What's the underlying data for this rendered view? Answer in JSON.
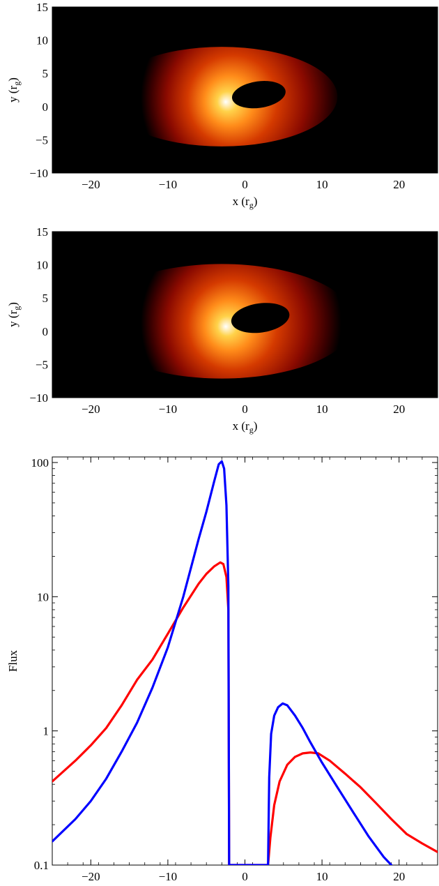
{
  "chart_data": [
    {
      "type": "heatmap",
      "xlabel": "x (r",
      "xlabel_sub": "g",
      "xlabel_close": ")",
      "ylabel": "y (r",
      "ylabel_sub": "g",
      "ylabel_close": ")",
      "xlim": [
        -25,
        25
      ],
      "ylim": [
        -10,
        15
      ],
      "xticks": [
        -20,
        -10,
        0,
        10,
        20
      ],
      "yticks": [
        -10,
        -5,
        0,
        5,
        10,
        15
      ],
      "colormap": [
        "#000000",
        "#3a0000",
        "#8a0a00",
        "#d43a00",
        "#ff8c1a",
        "#ffd24a",
        "#ffffff"
      ],
      "emission_peak": {
        "x": -2.5,
        "y": 0.7
      },
      "shadow": {
        "cx": 1.8,
        "cy": 1.8,
        "rx": 3.5,
        "ry": 2.0
      }
    },
    {
      "type": "heatmap",
      "xlabel": "x (r",
      "xlabel_sub": "g",
      "xlabel_close": ")",
      "ylabel": "y (r",
      "ylabel_sub": "g",
      "ylabel_close": ")",
      "xlim": [
        -25,
        25
      ],
      "ylim": [
        -10,
        15
      ],
      "xticks": [
        -20,
        -10,
        0,
        10,
        20
      ],
      "yticks": [
        -10,
        -5,
        0,
        5,
        10,
        15
      ],
      "colormap": [
        "#000000",
        "#3a0000",
        "#8a0a00",
        "#d43a00",
        "#ff8c1a",
        "#ffd24a",
        "#ffffff"
      ],
      "emission_peak": {
        "x": -2.5,
        "y": 0.7
      },
      "shadow": {
        "cx": 2.0,
        "cy": 2.0,
        "rx": 3.8,
        "ry": 2.2
      }
    },
    {
      "type": "line",
      "xlabel": "x (r",
      "xlabel_sub": "g",
      "xlabel_close": ")",
      "ylabel": "Flux",
      "xlim": [
        -25,
        25
      ],
      "ylim": [
        0.1,
        110
      ],
      "yscale": "log",
      "xticks": [
        -20,
        -10,
        0,
        10,
        20
      ],
      "yticks": [
        0.1,
        1,
        10,
        100
      ],
      "ytick_labels": [
        "0.1",
        "1",
        "10",
        "100"
      ],
      "series": [
        {
          "color": "#ff0000",
          "x": [
            -25,
            -22,
            -20,
            -18,
            -16,
            -14,
            -12,
            -10,
            -8,
            -6,
            -5,
            -4,
            -3.2,
            -2.8,
            -2.4,
            -2.15,
            -2.05,
            3.0,
            3.3,
            3.8,
            4.5,
            5.5,
            6.5,
            7.5,
            8.5,
            9.5,
            11,
            13,
            15,
            17,
            19,
            21,
            23,
            25
          ],
          "y": [
            0.42,
            0.6,
            0.78,
            1.05,
            1.55,
            2.4,
            3.4,
            5.3,
            8.3,
            12.5,
            14.8,
            16.8,
            18.0,
            17.5,
            14.0,
            8.0,
            0.1,
            0.1,
            0.16,
            0.28,
            0.42,
            0.56,
            0.64,
            0.68,
            0.69,
            0.68,
            0.6,
            0.48,
            0.38,
            0.29,
            0.22,
            0.17,
            0.145,
            0.125
          ]
        },
        {
          "color": "#0000ff",
          "x": [
            -25,
            -22,
            -20,
            -18,
            -16,
            -14,
            -12,
            -10,
            -8,
            -6,
            -5,
            -4,
            -3.4,
            -3.0,
            -2.7,
            -2.4,
            -2.15,
            -2.05,
            3.0,
            3.15,
            3.4,
            3.8,
            4.3,
            4.9,
            5.5,
            6.5,
            7.5,
            8.5,
            10,
            12,
            14,
            16,
            18,
            19
          ],
          "y": [
            0.15,
            0.22,
            0.3,
            0.44,
            0.7,
            1.15,
            2.1,
            4.2,
            10.0,
            27.0,
            43.0,
            72.0,
            97.0,
            102.0,
            90.0,
            48.0,
            12.0,
            0.1,
            0.1,
            0.45,
            0.95,
            1.3,
            1.5,
            1.6,
            1.55,
            1.3,
            1.05,
            0.82,
            0.58,
            0.38,
            0.25,
            0.165,
            0.115,
            0.1
          ]
        }
      ]
    }
  ]
}
